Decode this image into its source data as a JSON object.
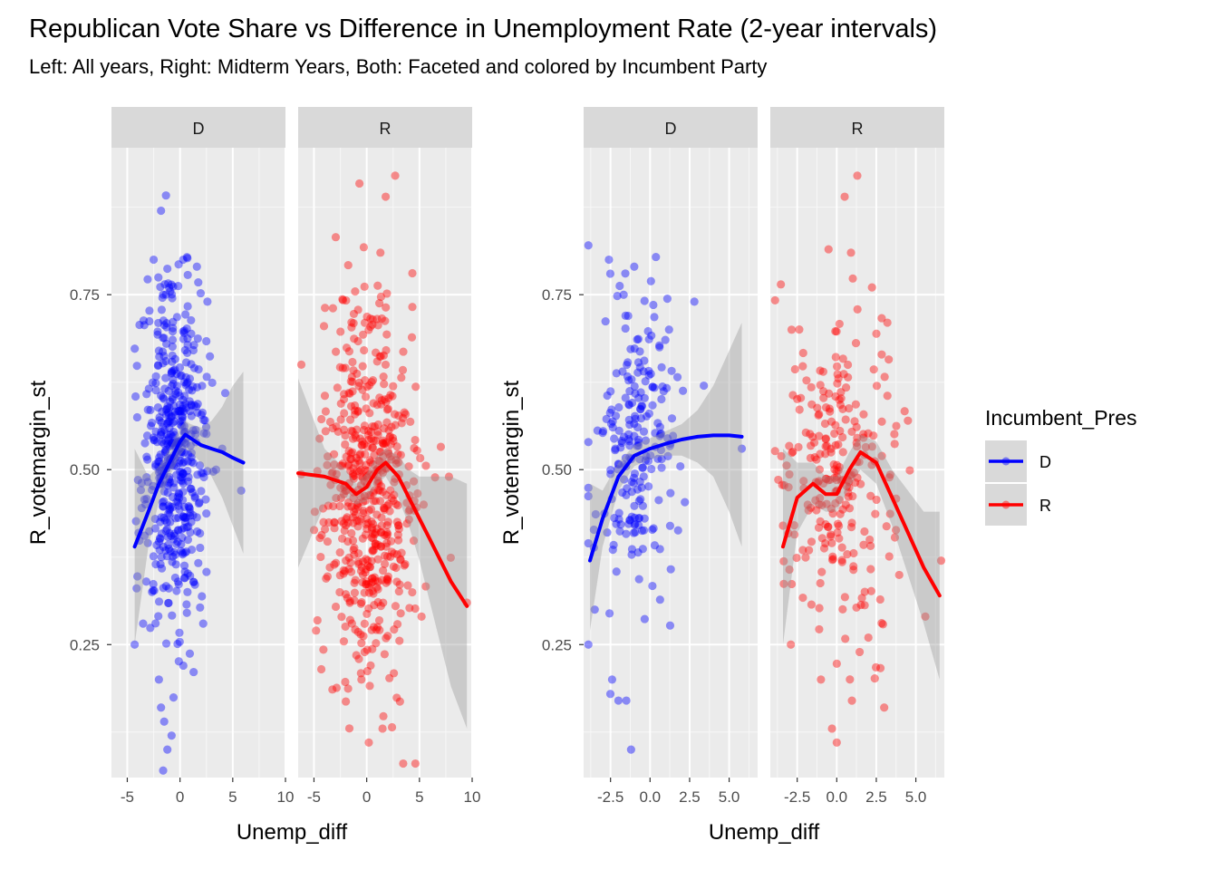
{
  "title": "Republican Vote Share vs Difference in Unemployment Rate (2-year intervals)",
  "subtitle": "Left: All years, Right: Midterm Years, Both: Faceted and colored by Incumbent Party",
  "colors": {
    "D": "#0000ff",
    "R": "#ff0000",
    "panel_bg": "#ebebeb",
    "strip_bg": "#d9d9d9",
    "ribbon": "#999999"
  },
  "legend": {
    "title": "Incumbent_Pres",
    "position": "right",
    "items": [
      {
        "key": "D",
        "label": "D"
      },
      {
        "key": "R",
        "label": "R"
      }
    ]
  },
  "chart_data": [
    {
      "type": "scatter",
      "name": "all-years",
      "xlabel": "Unemp_diff",
      "ylabel": "R_votemargin_st",
      "xlim": [
        -6.5,
        10
      ],
      "ylim": [
        0.06,
        0.96
      ],
      "x_ticks": [
        -5,
        0,
        5,
        10
      ],
      "x_tick_labels": [
        "-5",
        "0",
        "5",
        "10"
      ],
      "y_ticks": [
        0.25,
        0.5,
        0.75
      ],
      "y_tick_labels": [
        "0.25",
        "0.50",
        "0.75"
      ],
      "grid": true,
      "facets": [
        {
          "strip": "D",
          "party": "D",
          "point_cloud": {
            "n": 500,
            "x_center": -0.5,
            "x_sd": 1.5,
            "y_center": 0.53,
            "y_sd": 0.12
          },
          "points": [
            [
              -4.3,
              0.25
            ],
            [
              -1.8,
              0.87
            ],
            [
              -2.5,
              0.8
            ],
            [
              -1.6,
              0.75
            ],
            [
              0.3,
              0.8
            ],
            [
              1.6,
              0.79
            ],
            [
              2.6,
              0.74
            ],
            [
              -2.0,
              0.2
            ],
            [
              -1.8,
              0.16
            ],
            [
              -1.5,
              0.14
            ],
            [
              -1.2,
              0.1
            ],
            [
              -1.6,
              0.07
            ],
            [
              -0.8,
              0.12
            ],
            [
              2.2,
              0.28
            ],
            [
              5.8,
              0.47
            ],
            [
              4.0,
              0.53
            ],
            [
              -3.5,
              0.28
            ],
            [
              -3.2,
              0.34
            ]
          ],
          "smooth": {
            "x": [
              -4.3,
              -3.0,
              -2.0,
              -1.0,
              0.0,
              0.5,
              1.0,
              2.0,
              3.0,
              4.0,
              5.0,
              6.0
            ],
            "y": [
              0.39,
              0.44,
              0.48,
              0.51,
              0.54,
              0.55,
              0.545,
              0.535,
              0.53,
              0.525,
              0.517,
              0.51
            ]
          },
          "ribbon": {
            "x": [
              -4.3,
              -3.0,
              -2.0,
              -1.0,
              0.0,
              0.5,
              1.0,
              2.0,
              3.0,
              4.0,
              5.0,
              6.0
            ],
            "lo": [
              0.25,
              0.39,
              0.455,
              0.49,
              0.52,
              0.53,
              0.525,
              0.51,
              0.49,
              0.46,
              0.42,
              0.38
            ],
            "hi": [
              0.53,
              0.49,
              0.505,
              0.53,
              0.56,
              0.57,
              0.565,
              0.56,
              0.57,
              0.59,
              0.62,
              0.64
            ]
          }
        },
        {
          "strip": "R",
          "party": "R",
          "point_cloud": {
            "n": 560,
            "x_center": 0.3,
            "x_sd": 2.2,
            "y_center": 0.47,
            "y_sd": 0.13
          },
          "points": [
            [
              -6.2,
              0.65
            ],
            [
              2.7,
              0.92
            ],
            [
              1.8,
              0.89
            ],
            [
              1.3,
              0.81
            ],
            [
              -4.8,
              0.27
            ],
            [
              -0.5,
              0.2
            ],
            [
              0.2,
              0.11
            ],
            [
              1.5,
              0.13
            ],
            [
              7.8,
              0.49
            ],
            [
              9.5,
              0.31
            ],
            [
              5.4,
              0.45
            ],
            [
              5.2,
              0.29
            ]
          ],
          "smooth": {
            "x": [
              -6.5,
              -4.0,
              -2.0,
              -1.0,
              0.0,
              1.0,
              1.8,
              3.0,
              4.0,
              5.0,
              6.0,
              7.0,
              8.0,
              9.5
            ],
            "y": [
              0.495,
              0.49,
              0.48,
              0.465,
              0.475,
              0.5,
              0.51,
              0.49,
              0.46,
              0.43,
              0.4,
              0.37,
              0.34,
              0.305
            ]
          },
          "ribbon": {
            "x": [
              -6.5,
              -4.0,
              -2.0,
              -1.0,
              0.0,
              1.0,
              1.8,
              3.0,
              4.0,
              5.0,
              6.0,
              7.0,
              8.0,
              9.5
            ],
            "lo": [
              0.36,
              0.45,
              0.46,
              0.45,
              0.455,
              0.48,
              0.49,
              0.46,
              0.42,
              0.37,
              0.31,
              0.25,
              0.19,
              0.13
            ],
            "hi": [
              0.63,
              0.53,
              0.5,
              0.48,
              0.495,
              0.52,
              0.53,
              0.52,
              0.5,
              0.49,
              0.49,
              0.49,
              0.49,
              0.48
            ]
          }
        }
      ]
    },
    {
      "type": "scatter",
      "name": "midterm-years",
      "xlabel": "Unemp_diff",
      "ylabel": "R_votemargin_st",
      "xlim": [
        -4.2,
        6.8
      ],
      "ylim": [
        0.06,
        0.96
      ],
      "x_ticks": [
        -2.5,
        0,
        2.5,
        5
      ],
      "x_tick_labels": [
        "-2.5",
        "0.0",
        "2.5",
        "5.0"
      ],
      "y_ticks": [
        0.25,
        0.5,
        0.75
      ],
      "y_tick_labels": [
        "0.25",
        "0.50",
        "0.75"
      ],
      "grid": true,
      "facets": [
        {
          "strip": "D",
          "party": "D",
          "point_cloud": {
            "n": 220,
            "x_center": -1.0,
            "x_sd": 1.2,
            "y_center": 0.53,
            "y_sd": 0.11
          },
          "points": [
            [
              -3.9,
              0.25
            ],
            [
              -2.6,
              0.8
            ],
            [
              -1.0,
              0.79
            ],
            [
              -2.0,
              0.17
            ],
            [
              -1.5,
              0.17
            ],
            [
              -1.2,
              0.1
            ],
            [
              -2.4,
              0.2
            ],
            [
              2.8,
              0.74
            ],
            [
              5.8,
              0.53
            ],
            [
              3.4,
              0.62
            ],
            [
              1.2,
              0.7
            ],
            [
              -3.5,
              0.3
            ]
          ],
          "smooth": {
            "x": [
              -3.8,
              -3.0,
              -2.0,
              -1.0,
              0.0,
              1.0,
              2.0,
              3.0,
              4.0,
              5.0,
              5.8
            ],
            "y": [
              0.37,
              0.43,
              0.49,
              0.52,
              0.53,
              0.537,
              0.543,
              0.547,
              0.549,
              0.549,
              0.547
            ]
          },
          "ribbon": {
            "x": [
              -3.8,
              -3.0,
              -2.0,
              -1.0,
              0.0,
              1.0,
              2.0,
              3.0,
              4.0,
              5.0,
              5.8
            ],
            "lo": [
              0.27,
              0.39,
              0.47,
              0.505,
              0.515,
              0.52,
              0.52,
              0.51,
              0.49,
              0.44,
              0.39
            ],
            "hi": [
              0.48,
              0.47,
              0.51,
              0.535,
              0.545,
              0.555,
              0.565,
              0.585,
              0.62,
              0.67,
              0.71
            ]
          }
        },
        {
          "strip": "R",
          "party": "R",
          "point_cloud": {
            "n": 260,
            "x_center": 0.0,
            "x_sd": 1.6,
            "y_center": 0.48,
            "y_sd": 0.12
          },
          "points": [
            [
              -3.4,
              0.42
            ],
            [
              -2.9,
              0.25
            ],
            [
              1.3,
              0.92
            ],
            [
              0.5,
              0.89
            ],
            [
              0.9,
              0.81
            ],
            [
              -1.0,
              0.2
            ],
            [
              0.0,
              0.11
            ],
            [
              -0.3,
              0.13
            ],
            [
              3.0,
              0.16
            ],
            [
              4.5,
              0.57
            ],
            [
              5.6,
              0.29
            ],
            [
              6.6,
              0.37
            ],
            [
              2.0,
              0.26
            ],
            [
              3.2,
              0.71
            ]
          ],
          "smooth": {
            "x": [
              -3.4,
              -2.5,
              -1.5,
              -0.7,
              0.0,
              0.8,
              1.5,
              2.5,
              3.5,
              4.5,
              5.5,
              6.5
            ],
            "y": [
              0.39,
              0.46,
              0.48,
              0.465,
              0.465,
              0.5,
              0.525,
              0.51,
              0.46,
              0.41,
              0.36,
              0.32
            ]
          },
          "ribbon": {
            "x": [
              -3.4,
              -2.5,
              -1.5,
              -0.7,
              0.0,
              0.8,
              1.5,
              2.5,
              3.5,
              4.5,
              5.5,
              6.5
            ],
            "lo": [
              0.25,
              0.41,
              0.45,
              0.44,
              0.44,
              0.475,
              0.5,
              0.48,
              0.42,
              0.35,
              0.28,
              0.2
            ],
            "hi": [
              0.53,
              0.51,
              0.51,
              0.49,
              0.49,
              0.525,
              0.55,
              0.54,
              0.5,
              0.47,
              0.44,
              0.44
            ]
          }
        }
      ]
    }
  ]
}
